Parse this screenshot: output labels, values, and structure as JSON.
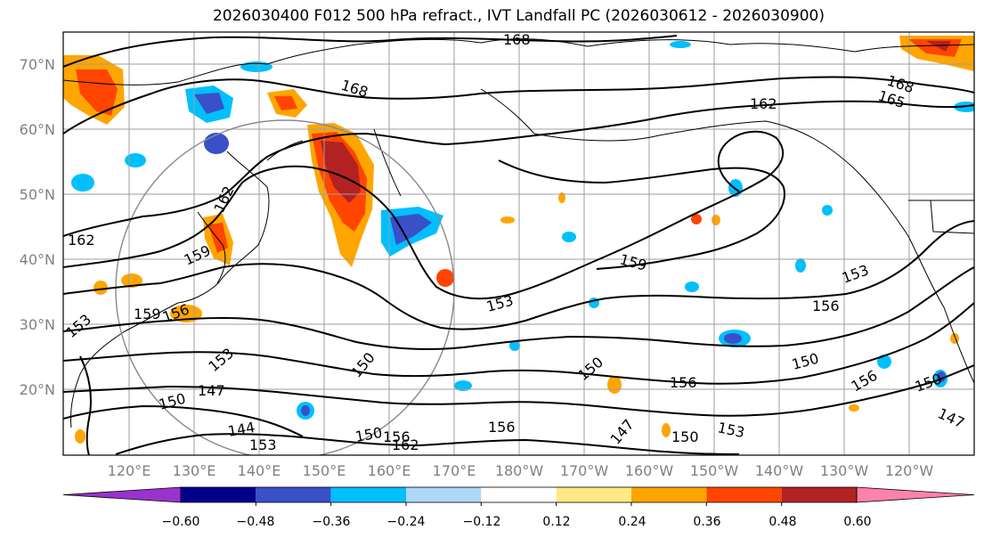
{
  "title": "2026030400 F012 500 hPa refract., IVT Landfall PC (2026030612 - 2026030900)",
  "lat_labels": [
    "70°N",
    "60°N",
    "50°N",
    "40°N",
    "30°N",
    "20°N"
  ],
  "lon_labels": [
    "120°E",
    "130°E",
    "140°E",
    "150°E",
    "160°E",
    "170°E",
    "180°W",
    "170°W",
    "160°W",
    "150°W",
    "140°W",
    "130°W",
    "120°W"
  ],
  "contour_labels": [
    "168",
    "168",
    "168",
    "165",
    "162",
    "162",
    "162",
    "162",
    "159",
    "159",
    "159",
    "156",
    "156",
    "153",
    "153",
    "153",
    "153",
    "153",
    "153",
    "150",
    "150",
    "150",
    "150",
    "150",
    "150",
    "147",
    "147",
    "147",
    "144",
    "156",
    "156",
    "156",
    "156",
    "150"
  ],
  "colorbar": {
    "ticks": [
      "−0.60",
      "−0.48",
      "−0.36",
      "−0.24",
      "−0.12",
      "0.12",
      "0.24",
      "0.36",
      "0.48",
      "0.60"
    ],
    "colors": [
      "#9a32cd",
      "#00008b",
      "#3a50c8",
      "#00bfff",
      "#add8f7",
      "#ffffff",
      "#ffe983",
      "#ffa500",
      "#ff4500",
      "#b22222",
      "#ff82ab"
    ]
  }
}
